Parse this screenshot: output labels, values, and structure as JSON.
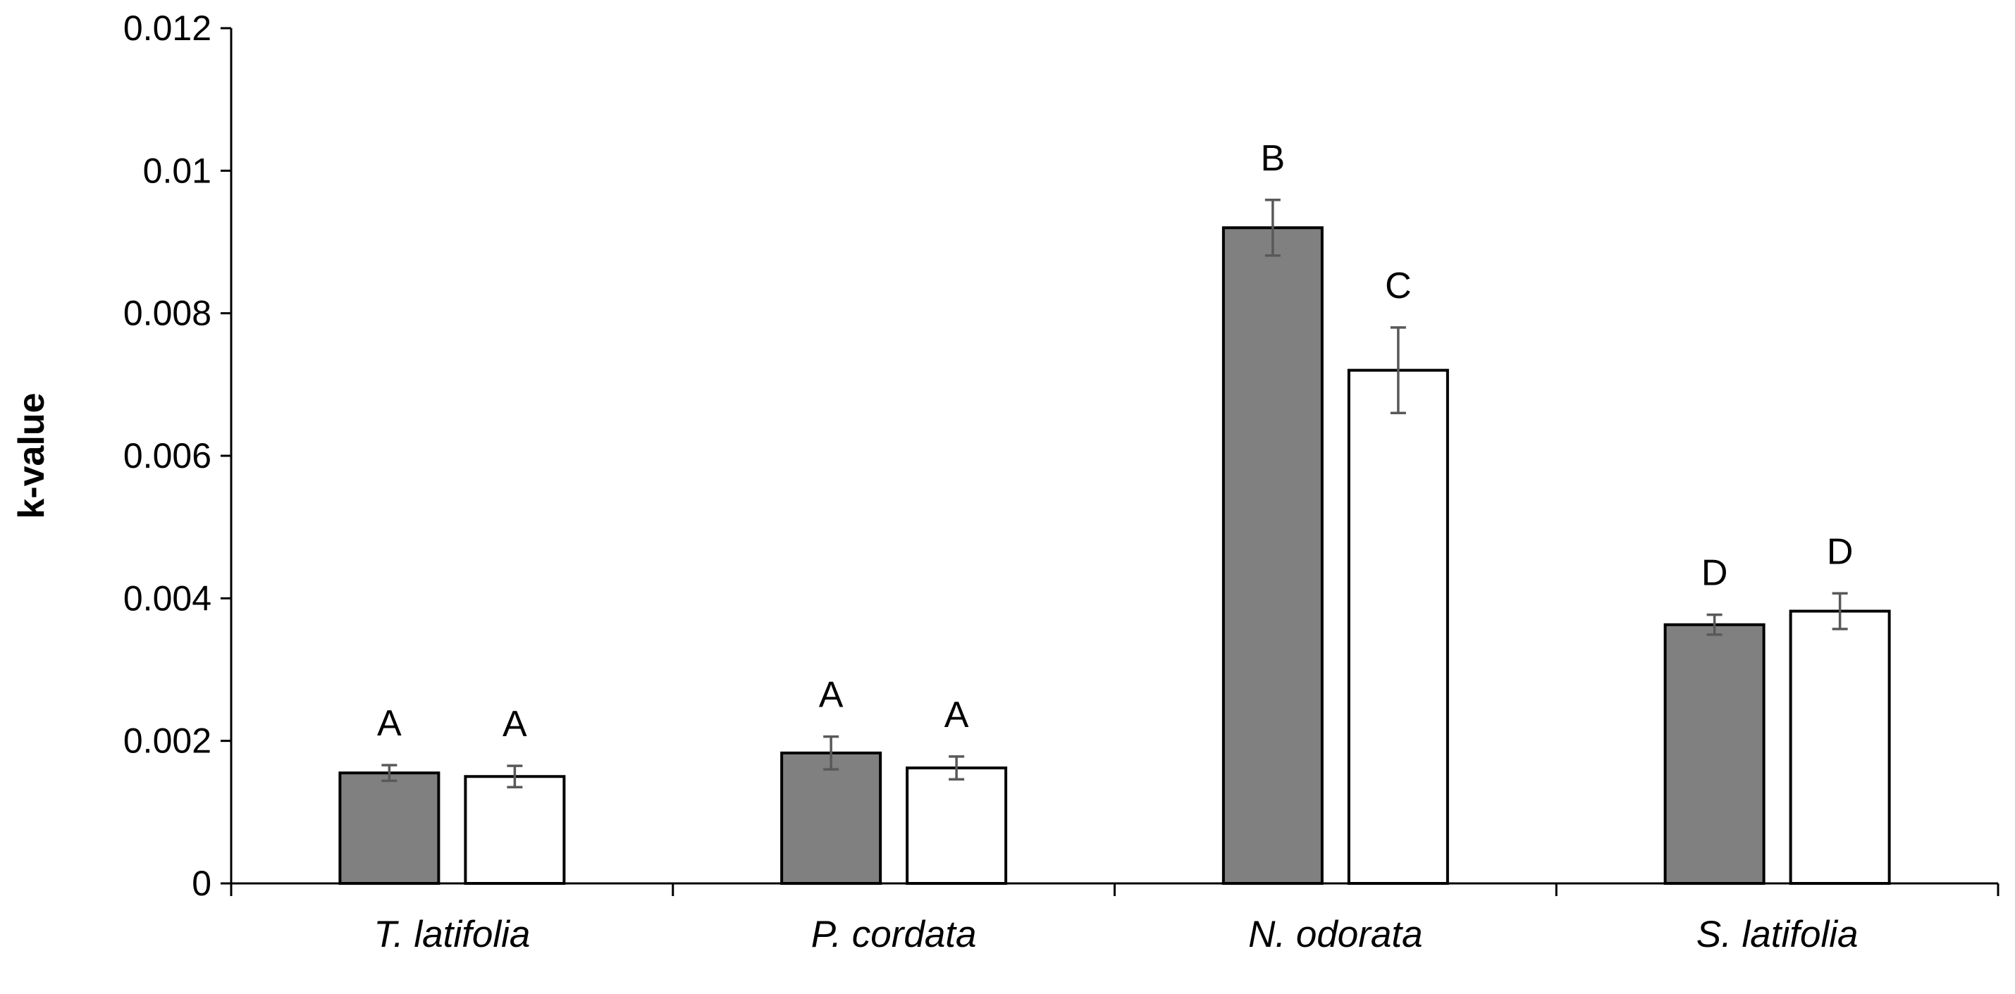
{
  "chart_data": {
    "type": "bar",
    "title": "",
    "xlabel": "",
    "ylabel": "k-value",
    "ylim": [
      0,
      0.012
    ],
    "yticks": [
      0,
      0.002,
      0.004,
      0.006,
      0.008,
      0.01,
      0.012
    ],
    "ytick_labels": [
      "0",
      "0.002",
      "0.004",
      "0.006",
      "0.008",
      "0.01",
      "0.012"
    ],
    "grid": false,
    "legend": "none",
    "categories": [
      "T. latifolia",
      "P. cordata",
      "N. odorata",
      "S. latifolia"
    ],
    "series": [
      {
        "name": "gray series",
        "color": "#808080",
        "values": [
          0.00155,
          0.00183,
          0.0092,
          0.00363
        ],
        "errors": [
          0.00011,
          0.00023,
          0.00039,
          0.00014
        ],
        "labels": [
          "A",
          "A",
          "B",
          "D"
        ]
      },
      {
        "name": "white series",
        "color": "#ffffff",
        "values": [
          0.0015,
          0.00162,
          0.0072,
          0.00382
        ],
        "errors": [
          0.00015,
          0.00016,
          0.0006,
          0.00025
        ],
        "labels": [
          "A",
          "A",
          "C",
          "D"
        ]
      }
    ]
  }
}
